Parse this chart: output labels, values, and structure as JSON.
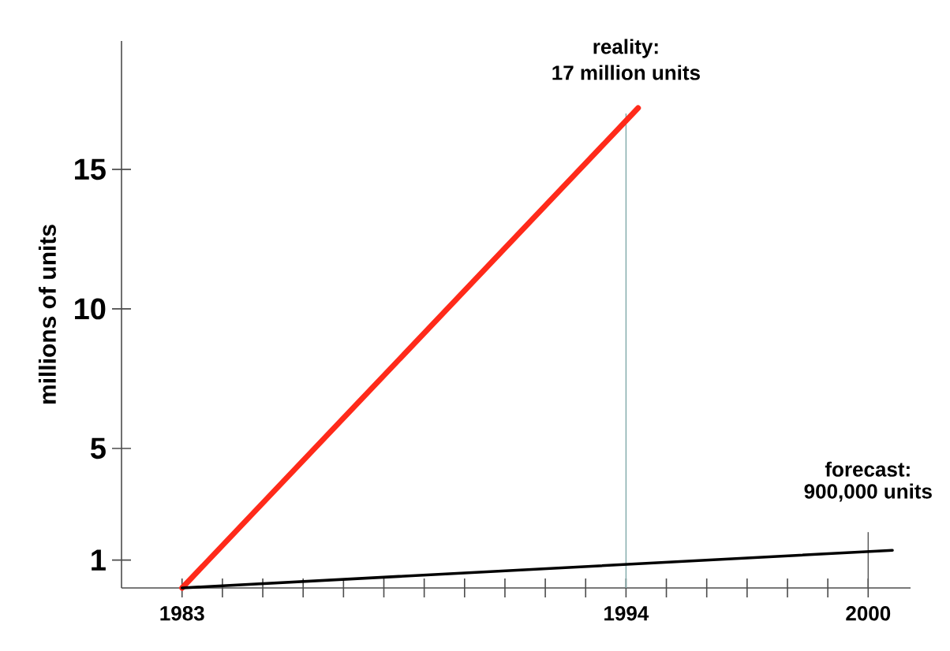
{
  "chart_data": {
    "type": "line",
    "ylabel": "millions of units",
    "series": [
      {
        "color": "#ff2a1a",
        "x": [
          1983,
          1994.3
        ],
        "values": [
          0,
          17.2
        ]
      },
      {
        "color": "#000000",
        "x": [
          1983,
          2000.6
        ],
        "values": [
          0,
          1.35
        ]
      }
    ],
    "xlim": [
      1981.5,
      2001.05
    ],
    "ylim": [
      0,
      19.6
    ],
    "xticks": [
      1983,
      {
        "value": 1984,
        "label": null
      },
      {
        "value": 1985,
        "label": null
      },
      {
        "value": 1986,
        "label": null
      },
      {
        "value": 1987,
        "label": null
      },
      {
        "value": 1988,
        "label": null
      },
      {
        "value": 1989,
        "label": null
      },
      {
        "value": 1990,
        "label": null
      },
      {
        "value": 1991,
        "label": null
      },
      {
        "value": 1992,
        "label": null
      },
      {
        "value": 1993,
        "label": null
      },
      1994,
      {
        "value": 1995,
        "label": null
      },
      {
        "value": 1996,
        "label": null
      },
      {
        "value": 1997,
        "label": null
      },
      {
        "value": 1998,
        "label": null
      },
      {
        "value": 1999,
        "label": null
      },
      2000
    ],
    "yticks": [
      1,
      5,
      10,
      15
    ],
    "ref_lines": [
      {
        "axis": "x",
        "value": 1994,
        "color": "#7fa8a8"
      },
      {
        "axis": "x",
        "value": 2000,
        "color": "#555555"
      }
    ],
    "annotations": [
      {
        "text": "reality:",
        "x": 1994,
        "y": 17
      },
      "17 million units",
      {
        "text": "forecast:",
        "x": 2000,
        "y": 2
      },
      "900,000 units"
    ]
  }
}
